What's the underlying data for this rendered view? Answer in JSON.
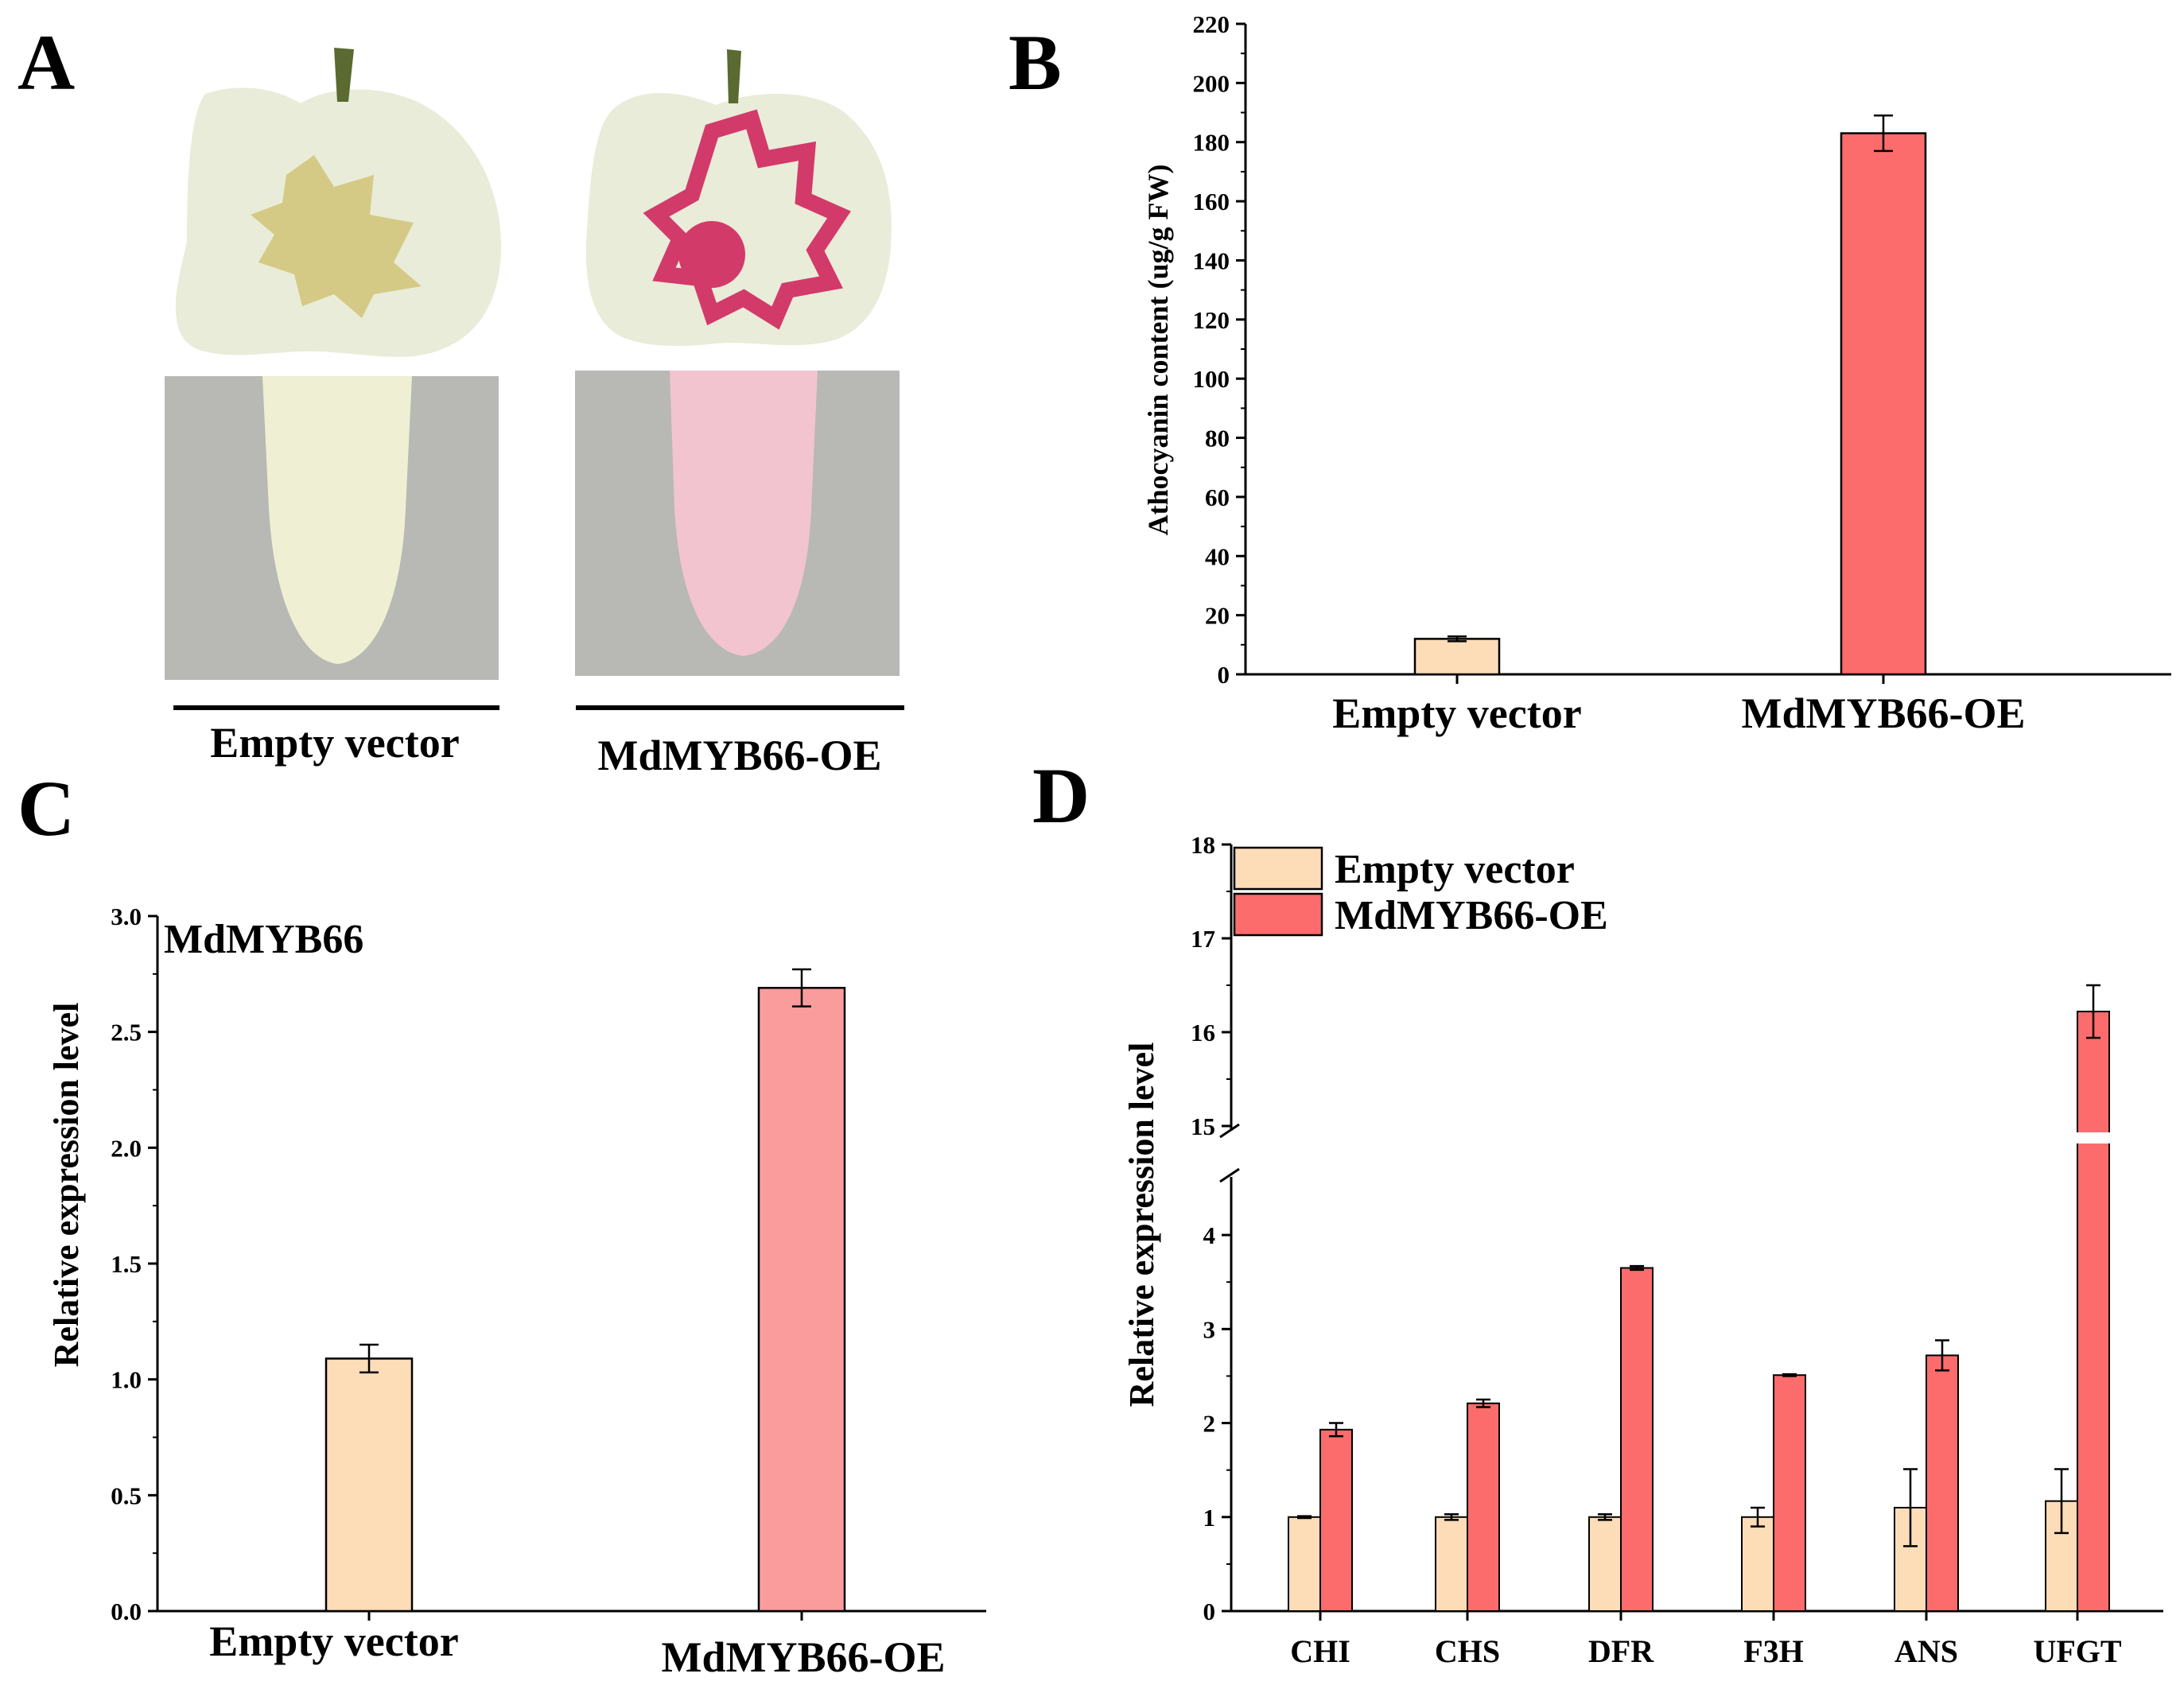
{
  "panels": {
    "a": "A",
    "b": "B",
    "c": "C",
    "d": "D"
  },
  "photo_panel": {
    "left_label": "Empty vector",
    "right_label": "MdMYB66-OE",
    "colors": {
      "apple_skin": "#e9ecd8",
      "apple_shadow": "#c9cdb0",
      "empty_stain": "#cdbf6a",
      "oe_stain": "#d23a6a",
      "tube_bg": "#b8b8b4",
      "empty_tube": "#efefd4",
      "oe_tube": "#f2c4cf"
    }
  },
  "colors": {
    "empty_vector": "#fddcb8",
    "oe": "#fc6c6c",
    "oe_light": "#fb9c9c",
    "bar_stroke": "#000000",
    "axis": "#000000"
  },
  "chart_data": [
    {
      "id": "B",
      "type": "bar",
      "title": "",
      "ylabel": "Athocyanin content (ug/g FW)",
      "xlabel": "",
      "ylim": [
        0,
        220
      ],
      "yticks": [
        0,
        20,
        40,
        60,
        80,
        100,
        120,
        140,
        160,
        180,
        200,
        220
      ],
      "categories": [
        "Empty vector",
        "MdMYB66-OE"
      ],
      "values": [
        12,
        183
      ],
      "errors": [
        0.8,
        6
      ],
      "grid": false
    },
    {
      "id": "C",
      "type": "bar",
      "title": "MdMYB66",
      "ylabel": "Relative expression level",
      "xlabel": "",
      "ylim": [
        0,
        3.0
      ],
      "yticks": [
        "0.0",
        "0.5",
        "1.0",
        "1.5",
        "2.0",
        "2.5",
        "3.0"
      ],
      "categories": [
        "Empty vector",
        "MdMYB66-OE"
      ],
      "values": [
        1.09,
        2.69
      ],
      "errors": [
        0.06,
        0.08
      ],
      "grid": false
    },
    {
      "id": "D",
      "type": "bar",
      "title": "",
      "ylabel": "Relative expression level",
      "xlabel": "",
      "axis_break": [
        4.5,
        15
      ],
      "ylim_lower": [
        0,
        4.5
      ],
      "ylim_upper": [
        15,
        18
      ],
      "yticks": [
        0,
        1,
        2,
        3,
        4,
        15,
        16,
        17,
        18
      ],
      "categories": [
        "CHI",
        "CHS",
        "DFR",
        "F3H",
        "ANS",
        "UFGT"
      ],
      "series": [
        {
          "name": "Empty vector",
          "values": [
            1.0,
            1.0,
            1.0,
            1.0,
            1.1,
            1.17
          ],
          "errors": [
            0.01,
            0.03,
            0.03,
            0.1,
            0.41,
            0.34
          ]
        },
        {
          "name": "MdMYB66-OE",
          "values": [
            1.93,
            2.21,
            3.65,
            2.51,
            2.72,
            16.22
          ],
          "errors": [
            0.07,
            0.04,
            0.02,
            0.01,
            0.16,
            0.28
          ]
        }
      ],
      "legend": "top-left",
      "grid": false
    }
  ]
}
